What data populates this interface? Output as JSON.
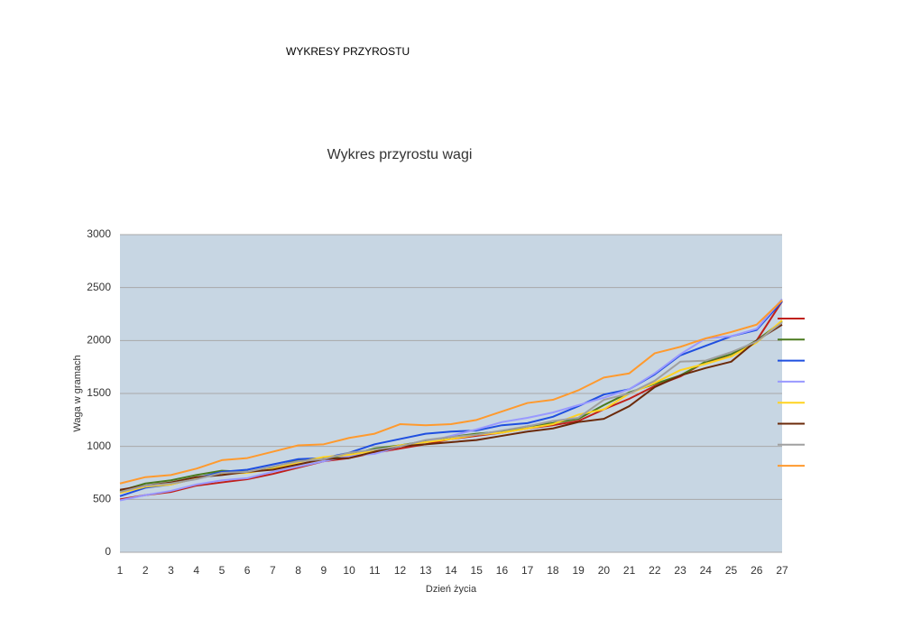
{
  "page_title": "WYKRESY PRZYROSTU",
  "chart_data": {
    "type": "line",
    "title": "Wykres przyrostu wagi",
    "x_label": "Dzień życia",
    "y_label": "Waga w gramach",
    "x": [
      1,
      2,
      3,
      4,
      5,
      6,
      7,
      8,
      9,
      10,
      11,
      12,
      13,
      14,
      15,
      16,
      17,
      18,
      19,
      20,
      21,
      22,
      23,
      24,
      25,
      26,
      27
    ],
    "xlim": [
      1,
      27
    ],
    "xticks": [
      1,
      2,
      3,
      4,
      5,
      6,
      7,
      8,
      9,
      10,
      11,
      12,
      13,
      14,
      15,
      16,
      17,
      18,
      19,
      20,
      21,
      22,
      23,
      24,
      25,
      26,
      27
    ],
    "ylim": [
      0,
      3000
    ],
    "yticks": [
      0,
      500,
      1000,
      1500,
      2000,
      2500,
      3000
    ],
    "grid": true,
    "legend": "right",
    "series": [
      {
        "color": "#c0201a",
        "values": [
          500,
          540,
          570,
          630,
          660,
          690,
          740,
          800,
          860,
          890,
          940,
          980,
          1020,
          1070,
          1100,
          1130,
          1170,
          1200,
          1240,
          1350,
          1450,
          1570,
          1660,
          1800,
          1850,
          2000,
          2370
        ]
      },
      {
        "color": "#4a7a1e",
        "values": [
          580,
          650,
          680,
          730,
          770,
          760,
          800,
          870,
          880,
          920,
          980,
          1010,
          1050,
          1090,
          1120,
          1140,
          1190,
          1220,
          1260,
          1390,
          1510,
          1590,
          1670,
          1800,
          1870,
          2000,
          2180
        ]
      },
      {
        "color": "#1f4fe0",
        "values": [
          530,
          610,
          640,
          700,
          760,
          780,
          830,
          880,
          890,
          940,
          1020,
          1070,
          1120,
          1140,
          1150,
          1200,
          1220,
          1280,
          1380,
          1490,
          1540,
          1680,
          1860,
          1950,
          2040,
          2100,
          2370
        ]
      },
      {
        "color": "#9999ff",
        "values": [
          490,
          540,
          580,
          640,
          680,
          700,
          760,
          810,
          860,
          910,
          930,
          1000,
          1040,
          1100,
          1160,
          1230,
          1270,
          1320,
          1390,
          1460,
          1540,
          1690,
          1870,
          2020,
          2040,
          2110,
          2390
        ]
      },
      {
        "color": "#ffd320",
        "values": [
          560,
          620,
          640,
          700,
          740,
          750,
          790,
          850,
          900,
          920,
          960,
          1010,
          1040,
          1070,
          1110,
          1130,
          1170,
          1210,
          1300,
          1350,
          1500,
          1600,
          1720,
          1780,
          1850,
          1980,
          2190
        ]
      },
      {
        "color": "#6b2a0a",
        "values": [
          590,
          630,
          660,
          710,
          730,
          760,
          780,
          830,
          880,
          890,
          950,
          1000,
          1020,
          1040,
          1060,
          1100,
          1140,
          1170,
          1230,
          1260,
          1380,
          1560,
          1670,
          1740,
          1800,
          2000,
          2150
        ]
      },
      {
        "color": "#a0a0a0",
        "values": [
          570,
          630,
          650,
          690,
          750,
          760,
          810,
          860,
          880,
          940,
          970,
          1000,
          1060,
          1090,
          1110,
          1150,
          1190,
          1240,
          1270,
          1440,
          1500,
          1620,
          1800,
          1810,
          1890,
          1990,
          2170
        ]
      },
      {
        "color": "#ff9a2e",
        "values": [
          650,
          710,
          730,
          790,
          870,
          890,
          950,
          1010,
          1020,
          1080,
          1120,
          1210,
          1200,
          1210,
          1250,
          1330,
          1410,
          1440,
          1530,
          1650,
          1690,
          1880,
          1940,
          2020,
          2080,
          2150,
          2380
        ]
      }
    ]
  }
}
